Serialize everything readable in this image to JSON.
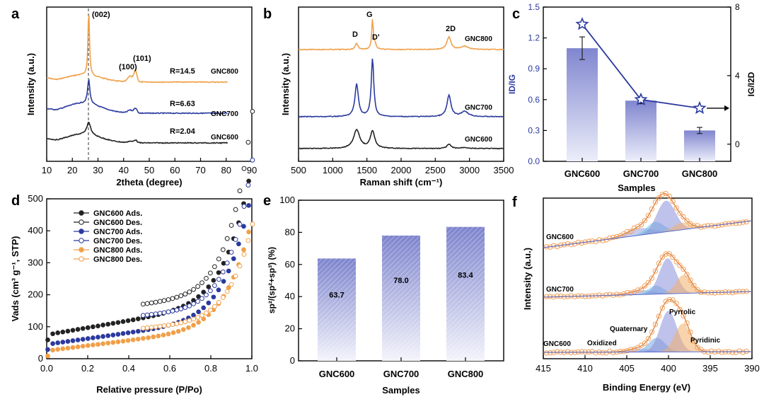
{
  "panels": {
    "a": {
      "letter": "a"
    },
    "b": {
      "letter": "b"
    },
    "c": {
      "letter": "c"
    },
    "d": {
      "letter": "d"
    },
    "e": {
      "letter": "e"
    },
    "f": {
      "letter": "f"
    }
  },
  "colors": {
    "gnc600": "#222222",
    "gnc700": "#2b3a9e",
    "gnc800": "#f0a04a",
    "bar": "#8d93d4",
    "star": "#2b3a9e"
  },
  "chart_data": [
    {
      "id": "a",
      "type": "line",
      "xlabel": "2theta (degree)",
      "ylabel": "Intensity (a.u.)",
      "xlim": [
        10,
        90
      ],
      "xticks": [
        10,
        20,
        30,
        40,
        50,
        60,
        70,
        80,
        90
      ],
      "series": [
        {
          "name": "GNC800",
          "ratio": "R=14.5"
        },
        {
          "name": "GNC700",
          "ratio": "R=6.63"
        },
        {
          "name": "GNC600",
          "ratio": "R=2.04"
        }
      ],
      "annotations": [
        "(002)",
        "(100)",
        "(101)"
      ]
    },
    {
      "id": "b",
      "type": "line",
      "xlabel": "Raman shift (cm⁻¹)",
      "ylabel": "Intensity (a.u.)",
      "xlim": [
        500,
        3500
      ],
      "xticks": [
        500,
        1000,
        1500,
        2000,
        2500,
        3000,
        3500
      ],
      "series": [
        {
          "name": "GNC800"
        },
        {
          "name": "GNC700"
        },
        {
          "name": "GNC600"
        }
      ],
      "annotations": [
        "D",
        "G",
        "D'",
        "2D"
      ]
    },
    {
      "id": "c",
      "type": "bar",
      "categories": [
        "GNC600",
        "GNC700",
        "GNC800"
      ],
      "values": [
        1.1,
        0.59,
        0.3
      ],
      "errors": [
        0.11,
        0.03,
        0.03
      ],
      "ylabel": "ID/IG",
      "ylim": [
        0,
        1.5
      ],
      "yticks": [
        "0.0",
        "0.3",
        "0.6",
        "0.9",
        "1.2",
        "1.5"
      ],
      "y2label": "IG/I2D",
      "y2lim": [
        -1,
        8
      ],
      "y2ticks": [
        "0",
        "4",
        "8"
      ],
      "y2values": [
        7.0,
        2.6,
        2.1
      ],
      "xlabel": "Samples"
    },
    {
      "id": "d",
      "type": "scatter",
      "xlabel": "Relative pressure (P/Po)",
      "ylabel": "Vads (cm³ g⁻¹, STP)",
      "xlim": [
        0,
        1
      ],
      "ylim": [
        0,
        500
      ],
      "xticks": [
        "0.0",
        "0.2",
        "0.4",
        "0.6",
        "0.8",
        "1.0"
      ],
      "yticks": [
        "0",
        "100",
        "200",
        "300",
        "400",
        "500"
      ],
      "legend": [
        "GNC600 Ads.",
        "GNC600 Des.",
        "GNC700 Ads.",
        "GNC700 Des.",
        "GNC800 Ads.",
        "GNC800 Des."
      ]
    },
    {
      "id": "e",
      "type": "bar",
      "categories": [
        "GNC600",
        "GNC700",
        "GNC800"
      ],
      "values": [
        63.7,
        78.0,
        83.4
      ],
      "labels": [
        "63.7",
        "78.0",
        "83.4"
      ],
      "ylabel": "sp²/(sp²+sp³) (%)",
      "ylim": [
        0,
        100
      ],
      "yticks": [
        "0",
        "20",
        "40",
        "60",
        "80",
        "100"
      ],
      "xlabel": "Samples"
    },
    {
      "id": "f",
      "type": "line",
      "xlabel": "Binding Energy (eV)",
      "ylabel": "Intensity (a.u.)",
      "xlim": [
        415,
        390
      ],
      "xticks": [
        "415",
        "410",
        "405",
        "400",
        "395",
        "390"
      ],
      "series": [
        {
          "name": "GNC600"
        },
        {
          "name": "GNC700"
        },
        {
          "name": "GNC600"
        }
      ],
      "annotations": [
        "Oxidized",
        "Quaternary",
        "Pyrrolic",
        "Pyridinic"
      ]
    }
  ]
}
